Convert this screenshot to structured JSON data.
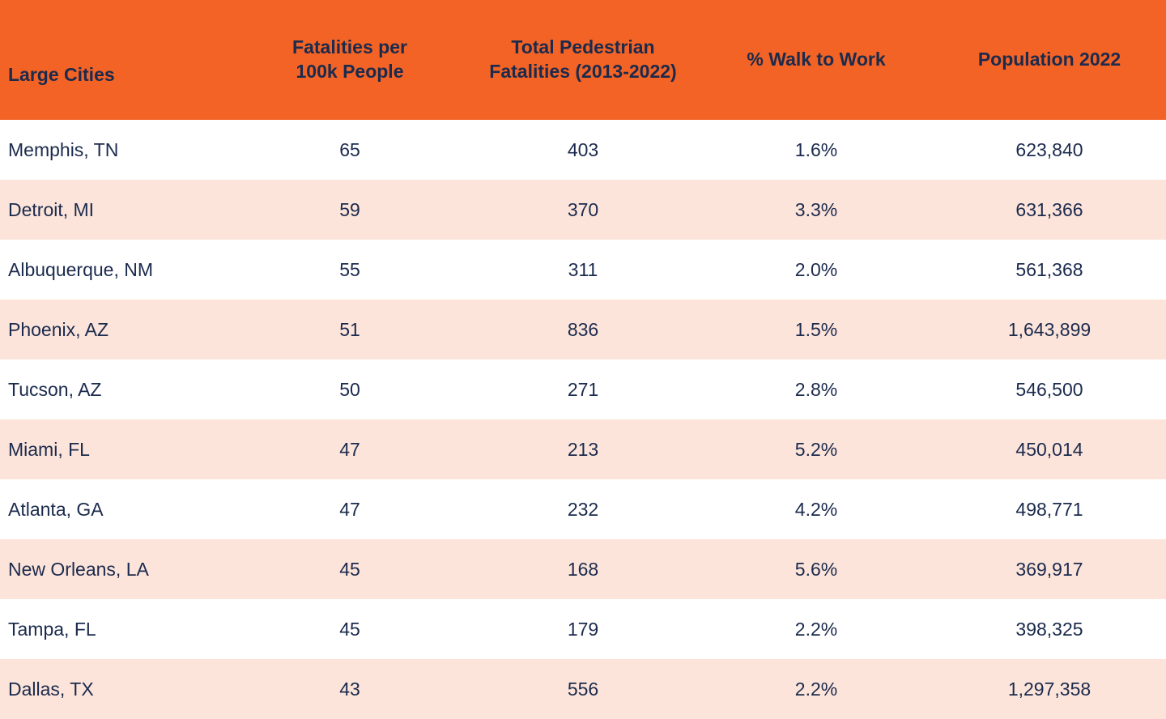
{
  "colors": {
    "header_bg": "#F26325",
    "row_bg": "#FFFFFF",
    "row_alt_bg": "#FCE4DA",
    "text": "#1B2A4D"
  },
  "chart_data": {
    "type": "table",
    "title": "",
    "columns": [
      "Large Cities",
      "Fatalities per\n100k People",
      "Total Pedestrian\nFatalities (2013-2022)",
      "% Walk to Work",
      "Population 2022"
    ],
    "rows": [
      [
        "Memphis, TN",
        "65",
        "403",
        "1.6%",
        "623,840"
      ],
      [
        "Detroit, MI",
        "59",
        "370",
        "3.3%",
        "631,366"
      ],
      [
        "Albuquerque, NM",
        "55",
        "311",
        "2.0%",
        "561,368"
      ],
      [
        "Phoenix, AZ",
        "51",
        "836",
        "1.5%",
        "1,643,899"
      ],
      [
        "Tucson, AZ",
        "50",
        "271",
        "2.8%",
        "546,500"
      ],
      [
        "Miami, FL",
        "47",
        "213",
        "5.2%",
        "450,014"
      ],
      [
        "Atlanta, GA",
        "47",
        "232",
        "4.2%",
        "498,771"
      ],
      [
        "New Orleans, LA",
        "45",
        "168",
        "5.6%",
        "369,917"
      ],
      [
        "Tampa, FL",
        "45",
        "179",
        "2.2%",
        "398,325"
      ],
      [
        "Dallas, TX",
        "43",
        "556",
        "2.2%",
        "1,297,358"
      ]
    ]
  }
}
